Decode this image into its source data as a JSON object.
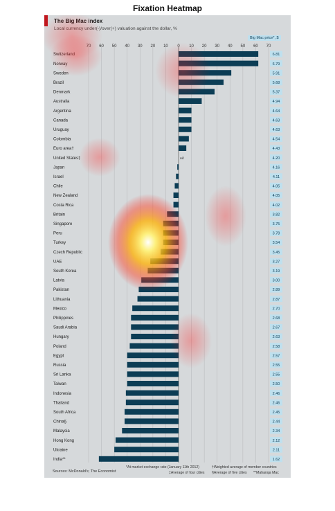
{
  "heading": "Fixation Heatmap",
  "figure": {
    "title": "The Big Mac index",
    "subtitle": "Local currency under(-)/over(+) valuation against the dollar, %",
    "price_header": "Big Mac price*, $",
    "source": "Sources: McDonald's; The Economist",
    "footnotes": [
      "*At market exchange rate (January 11th 2012)",
      "†Weighted average of member countries",
      "‡Average of four cities",
      "§Average of five cities",
      "**Maharaja Mac"
    ],
    "nil_label": "nil"
  },
  "chart_data": {
    "type": "bar",
    "orientation": "horizontal",
    "xlim": [
      -70,
      70
    ],
    "xticks": [
      "70",
      "60",
      "50",
      "40",
      "30",
      "20",
      "10",
      "0",
      "10",
      "20",
      "30",
      "40",
      "50",
      "60",
      "70"
    ],
    "bar_color": "#0c3d55",
    "price_color": "#bfe0ee",
    "categories": [
      "Switzerland",
      "Norway",
      "Sweden",
      "Brazil",
      "Denmark",
      "Australia",
      "Argentina",
      "Canada",
      "Uruguay",
      "Colombia",
      "Euro area†",
      "United States‡",
      "Japan",
      "Israel",
      "Chile",
      "New Zealand",
      "Costa Rica",
      "Britain",
      "Singapore",
      "Peru",
      "Turkey",
      "Czech Republic",
      "UAE",
      "South Korea",
      "Latvia",
      "Pakistan",
      "Lithuania",
      "Mexico",
      "Philippines",
      "Saudi Arabia",
      "Hungary",
      "Poland",
      "Egypt",
      "Russia",
      "Sri Lanka",
      "Taiwan",
      "Indonesia",
      "Thailand",
      "South Africa",
      "China§",
      "Malaysia",
      "Hong Kong",
      "Ukraine",
      "India**"
    ],
    "values": [
      62,
      62,
      41,
      35,
      28,
      18,
      10,
      10,
      10,
      8,
      6,
      0,
      -1,
      -2,
      -3,
      -4,
      -4,
      -9,
      -12,
      -12,
      -12,
      -14,
      -22,
      -24,
      -29,
      -31,
      -32,
      -36,
      -37,
      -37,
      -37,
      -38,
      -40,
      -40,
      -40,
      -40,
      -41,
      -41,
      -42,
      -42,
      -44,
      -49,
      -50,
      -62
    ],
    "prices": [
      "6.81",
      "6.79",
      "5.91",
      "5.68",
      "5.37",
      "4.94",
      "4.64",
      "4.63",
      "4.63",
      "4.54",
      "4.43",
      "4.20",
      "4.16",
      "4.11",
      "4.05",
      "4.05",
      "4.02",
      "3.82",
      "3.75",
      "3.78",
      "3.54",
      "3.45",
      "3.27",
      "3.19",
      "3.00",
      "2.89",
      "2.87",
      "2.70",
      "2.68",
      "2.67",
      "2.63",
      "2.58",
      "2.57",
      "2.55",
      "2.55",
      "2.50",
      "2.46",
      "2.46",
      "2.45",
      "2.44",
      "2.34",
      "2.12",
      "2.11",
      "1.62"
    ]
  }
}
